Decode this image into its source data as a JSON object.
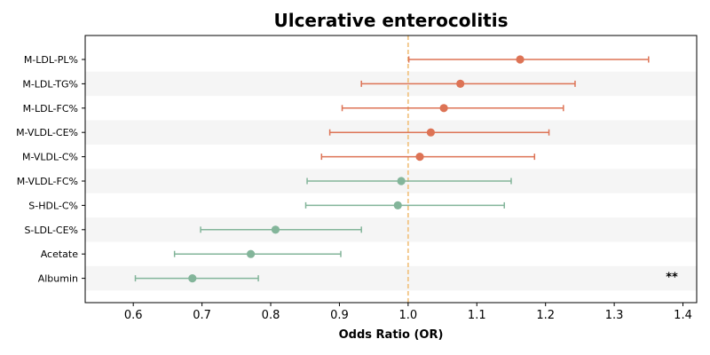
{
  "chart_data": {
    "type": "forest",
    "title": "Ulcerative enterocolitis",
    "xlabel": "Odds Ratio (OR)",
    "ylabel": "",
    "xlim": [
      0.53,
      1.42
    ],
    "xticks": [
      "0.6",
      "0.7",
      "0.8",
      "0.9",
      "1.0",
      "1.1",
      "1.2",
      "1.3",
      "1.4"
    ],
    "reference_line": 1.0,
    "categories": [
      "M-LDL-PL%",
      "M-LDL-TG%",
      "M-LDL-FC%",
      "M-VLDL-CE%",
      "M-VLDL-C%",
      "M-VLDL-FC%",
      "S-HDL-C%",
      "S-LDL-CE%",
      "Acetate",
      "Albumin"
    ],
    "or": [
      1.163,
      1.076,
      1.052,
      1.033,
      1.017,
      0.99,
      0.985,
      0.807,
      0.771,
      0.686
    ],
    "ci_low": [
      1.001,
      0.932,
      0.904,
      0.886,
      0.874,
      0.853,
      0.851,
      0.698,
      0.66,
      0.603
    ],
    "ci_high": [
      1.35,
      1.243,
      1.226,
      1.205,
      1.184,
      1.15,
      1.14,
      0.932,
      0.902,
      0.782
    ],
    "annotations": [
      {
        "category": "Albumin",
        "text": "**"
      }
    ],
    "colors": {
      "risk": "#dd7355",
      "protective": "#83b59a",
      "reference": "#f2c585",
      "band": "#f5f5f5",
      "axis": "#000000"
    },
    "grid": false,
    "legend": "none"
  }
}
